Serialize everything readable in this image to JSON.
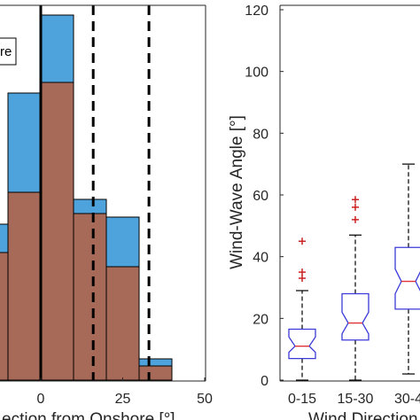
{
  "chart_data": [
    {
      "type": "bar",
      "title": "",
      "xlabel": "ection from Onshore [°]",
      "xlim": [
        -45,
        50
      ],
      "ylim": [
        0,
        10.5
      ],
      "x_ticks": [
        "0",
        "25",
        "50"
      ],
      "x_tick_values": [
        0,
        25,
        50
      ],
      "bin_edges": [
        -20,
        -10,
        0,
        10,
        20,
        30,
        40
      ],
      "series": [
        {
          "color": "#4fa3dc",
          "values": [
            4.4,
            8.1,
            10.3,
            5.1,
            4.6,
            0.6
          ]
        },
        {
          "color": "#a86a58",
          "values": [
            3.6,
            5.3,
            8.4,
            4.7,
            3.2,
            0.4
          ]
        }
      ],
      "vertical_lines": [
        {
          "x": 0,
          "style": "solid"
        },
        {
          "x": 16,
          "style": "dashed"
        },
        {
          "x": 33,
          "style": "dashed"
        }
      ],
      "legend_text": "re",
      "grid": false
    },
    {
      "type": "box",
      "title": "",
      "xlabel": "Wind Direction",
      "ylabel": "Wind-Wave Angle [°]",
      "ylim": [
        0,
        120
      ],
      "y_ticks": [
        "0",
        "20",
        "40",
        "60",
        "80",
        "100",
        "120"
      ],
      "y_tick_values": [
        0,
        20,
        40,
        60,
        80,
        100,
        120
      ],
      "categories": [
        "0-15",
        "15-30",
        "30-4"
      ],
      "boxes": [
        {
          "whisker_low": 0,
          "q1": 7,
          "median": 11,
          "q3": 16.5,
          "whisker_high": 29,
          "notch_low": 9,
          "notch_high": 14,
          "outliers": [
            45,
            35,
            33
          ]
        },
        {
          "whisker_low": 0,
          "q1": 13,
          "median": 18.5,
          "q3": 28,
          "whisker_high": 47,
          "notch_low": 15,
          "notch_high": 22,
          "outliers": [
            58.5,
            56,
            52
          ]
        },
        {
          "whisker_low": 2,
          "q1": 23,
          "median": 32,
          "q3": 43,
          "whisker_high": 70,
          "notch_low": 28,
          "notch_high": 36,
          "outliers": []
        }
      ],
      "box_color": "#3a3ad8",
      "median_color": "#e0343a",
      "outlier_color": "#cc2222",
      "grid": false
    }
  ]
}
